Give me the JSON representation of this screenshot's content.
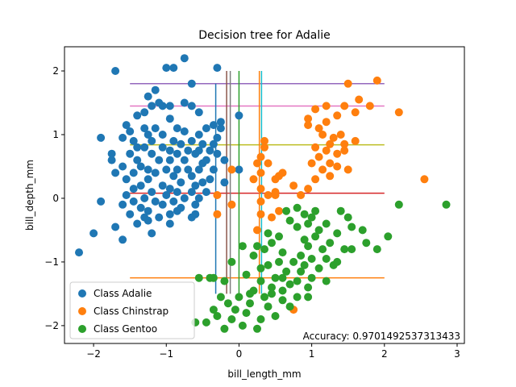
{
  "chart_data": {
    "type": "scatter",
    "title": "Decision tree for Adalie",
    "xlabel": "bill_length_mm",
    "ylabel": "bill_depth_mm",
    "xlim": [
      -2.4,
      3.1
    ],
    "ylim": [
      -2.28,
      2.38
    ],
    "xticks": [
      -2,
      -1,
      0,
      1,
      2,
      3
    ],
    "xtick_labels": [
      "−2",
      "−1",
      "0",
      "1",
      "2",
      "3"
    ],
    "yticks": [
      -2,
      -1,
      0,
      1,
      2
    ],
    "ytick_labels": [
      "−2",
      "−1",
      "0",
      "1",
      "2"
    ],
    "grid": false,
    "legend_position": "lower-left",
    "annotation": "Accuracy: 0.9701492537313433",
    "series": [
      {
        "name": "Class Adalie",
        "color": "#1f77b4",
        "points": [
          [
            -0.75,
            2.2
          ],
          [
            -1.0,
            2.05
          ],
          [
            -0.9,
            2.05
          ],
          [
            -0.65,
            1.8
          ],
          [
            -1.15,
            1.7
          ],
          [
            -1.1,
            1.5
          ],
          [
            -1.25,
            1.6
          ],
          [
            -0.75,
            1.5
          ],
          [
            -1.2,
            1.45
          ],
          [
            -1.05,
            1.45
          ],
          [
            -0.95,
            1.45
          ],
          [
            -0.65,
            1.45
          ],
          [
            -0.55,
            1.35
          ],
          [
            -1.3,
            1.35
          ],
          [
            -1.4,
            1.3
          ],
          [
            -0.95,
            1.25
          ],
          [
            -1.55,
            1.15
          ],
          [
            -1.3,
            1.1
          ],
          [
            -1.15,
            1.1
          ],
          [
            -0.85,
            1.1
          ],
          [
            -0.45,
            1.1
          ],
          [
            -0.35,
            1.15
          ],
          [
            -1.5,
            1.05
          ],
          [
            -1.25,
            1.0
          ],
          [
            -1.05,
            1.0
          ],
          [
            -0.75,
            1.05
          ],
          [
            -0.55,
            1.0
          ],
          [
            -1.9,
            0.95
          ],
          [
            -1.6,
            0.95
          ],
          [
            -1.45,
            0.9
          ],
          [
            -1.2,
            0.9
          ],
          [
            -0.9,
            0.9
          ],
          [
            -0.8,
            0.85
          ],
          [
            -0.65,
            0.9
          ],
          [
            -0.5,
            0.85
          ],
          [
            -1.4,
            0.8
          ],
          [
            -1.3,
            0.8
          ],
          [
            -1.05,
            0.8
          ],
          [
            -0.95,
            0.75
          ],
          [
            -0.7,
            0.75
          ],
          [
            -0.55,
            0.75
          ],
          [
            -0.4,
            0.75
          ],
          [
            -0.3,
            0.7
          ],
          [
            -1.75,
            0.7
          ],
          [
            -1.5,
            0.7
          ],
          [
            -1.2,
            0.7
          ],
          [
            -0.85,
            0.7
          ],
          [
            -0.6,
            0.7
          ],
          [
            -1.75,
            0.6
          ],
          [
            -1.4,
            0.6
          ],
          [
            -1.1,
            0.6
          ],
          [
            -0.95,
            0.6
          ],
          [
            -0.75,
            0.6
          ],
          [
            -0.5,
            0.55
          ],
          [
            -1.6,
            0.5
          ],
          [
            -1.35,
            0.5
          ],
          [
            -1.25,
            0.45
          ],
          [
            -1.0,
            0.45
          ],
          [
            -0.85,
            0.45
          ],
          [
            -0.7,
            0.45
          ],
          [
            -0.55,
            0.45
          ],
          [
            -0.35,
            0.45
          ],
          [
            -1.7,
            0.4
          ],
          [
            -1.45,
            0.4
          ],
          [
            -1.15,
            0.4
          ],
          [
            -0.9,
            0.35
          ],
          [
            -0.65,
            0.35
          ],
          [
            -1.55,
            0.3
          ],
          [
            -1.25,
            0.3
          ],
          [
            -0.8,
            0.25
          ],
          [
            -0.5,
            0.25
          ],
          [
            -1.35,
            0.2
          ],
          [
            -1.05,
            0.2
          ],
          [
            -0.95,
            0.15
          ],
          [
            -0.6,
            0.2
          ],
          [
            -1.45,
            0.15
          ],
          [
            -1.2,
            0.1
          ],
          [
            -0.85,
            0.1
          ],
          [
            -0.65,
            0.1
          ],
          [
            -0.45,
            0.1
          ],
          [
            -1.55,
            0.05
          ],
          [
            -1.3,
            0.0
          ],
          [
            -1.0,
            0.05
          ],
          [
            -0.75,
            0.0
          ],
          [
            -0.55,
            0.0
          ],
          [
            -1.9,
            -0.05
          ],
          [
            -1.45,
            -0.05
          ],
          [
            -1.15,
            -0.05
          ],
          [
            -0.9,
            -0.05
          ],
          [
            -0.6,
            -0.1
          ],
          [
            -1.6,
            -0.1
          ],
          [
            -1.35,
            -0.15
          ],
          [
            -1.05,
            -0.1
          ],
          [
            -0.8,
            -0.15
          ],
          [
            -1.5,
            -0.25
          ],
          [
            -1.25,
            -0.2
          ],
          [
            -0.95,
            -0.25
          ],
          [
            -0.6,
            -0.25
          ],
          [
            -1.3,
            -0.3
          ],
          [
            -1.1,
            -0.3
          ],
          [
            -0.85,
            -0.2
          ],
          [
            -0.65,
            -0.3
          ],
          [
            -1.7,
            -0.45
          ],
          [
            -1.4,
            -0.4
          ],
          [
            -1.2,
            -0.55
          ],
          [
            -0.95,
            -0.4
          ],
          [
            -2.0,
            -0.55
          ],
          [
            -1.6,
            -0.65
          ],
          [
            -2.2,
            -0.85
          ],
          [
            -1.25,
            -0.35
          ],
          [
            -0.35,
            0.85
          ],
          [
            -0.3,
            0.95
          ],
          [
            -0.45,
            0.6
          ],
          [
            -0.25,
            1.1
          ],
          [
            -0.25,
            1.2
          ],
          [
            -0.2,
            0.6
          ],
          [
            -0.2,
            0.25
          ],
          [
            -0.4,
            0.3
          ],
          [
            0.0,
            1.3
          ],
          [
            0.0,
            0.45
          ],
          [
            -0.3,
            2.05
          ],
          [
            -1.7,
            2.0
          ]
        ]
      },
      {
        "name": "Class Chinstrap",
        "color": "#ff7f0e",
        "points": [
          [
            1.5,
            1.8
          ],
          [
            1.9,
            1.85
          ],
          [
            1.2,
            1.45
          ],
          [
            1.05,
            1.4
          ],
          [
            1.45,
            1.45
          ],
          [
            1.65,
            1.55
          ],
          [
            1.8,
            1.45
          ],
          [
            2.2,
            1.35
          ],
          [
            1.6,
            1.35
          ],
          [
            1.35,
            1.3
          ],
          [
            0.95,
            1.25
          ],
          [
            0.95,
            1.15
          ],
          [
            1.2,
            1.2
          ],
          [
            1.1,
            1.1
          ],
          [
            1.15,
            1.0
          ],
          [
            1.3,
            0.95
          ],
          [
            1.4,
            1.0
          ],
          [
            1.45,
            0.85
          ],
          [
            1.25,
            0.85
          ],
          [
            1.05,
            0.8
          ],
          [
            1.2,
            0.75
          ],
          [
            1.45,
            0.75
          ],
          [
            1.6,
            0.9
          ],
          [
            1.35,
            0.7
          ],
          [
            1.1,
            0.65
          ],
          [
            1.25,
            0.55
          ],
          [
            1.0,
            0.55
          ],
          [
            1.15,
            0.45
          ],
          [
            1.35,
            0.5
          ],
          [
            1.5,
            0.45
          ],
          [
            1.25,
            0.35
          ],
          [
            1.05,
            0.3
          ],
          [
            0.5,
            0.3
          ],
          [
            0.55,
            0.35
          ],
          [
            0.6,
            0.4
          ],
          [
            0.25,
            0.55
          ],
          [
            0.3,
            0.65
          ],
          [
            0.35,
            0.8
          ],
          [
            0.4,
            0.55
          ],
          [
            0.2,
            0.3
          ],
          [
            0.75,
            0.2
          ],
          [
            0.95,
            0.15
          ],
          [
            0.5,
            0.1
          ],
          [
            0.4,
            0.05
          ],
          [
            0.3,
            -0.05
          ],
          [
            0.85,
            0.05
          ],
          [
            2.55,
            0.3
          ],
          [
            0.55,
            -0.2
          ],
          [
            0.45,
            -0.3
          ],
          [
            0.3,
            -0.25
          ],
          [
            0.25,
            -0.5
          ],
          [
            0.35,
            0.9
          ],
          [
            -0.3,
            -0.25
          ],
          [
            -0.1,
            0.45
          ],
          [
            -0.1,
            -0.1
          ],
          [
            -0.3,
            0.05
          ],
          [
            0.3,
            0.15
          ],
          [
            0.75,
            -1.75
          ],
          [
            0.3,
            0.4
          ],
          [
            0.5,
            0.05
          ]
        ]
      },
      {
        "name": "Class Gentoo",
        "color": "#2ca02c",
        "points": [
          [
            2.2,
            -0.1
          ],
          [
            2.85,
            -0.1
          ],
          [
            1.5,
            -0.3
          ],
          [
            2.05,
            -0.6
          ],
          [
            1.75,
            -0.7
          ],
          [
            1.9,
            -0.8
          ],
          [
            1.55,
            -0.8
          ],
          [
            1.35,
            -0.55
          ],
          [
            1.2,
            -0.4
          ],
          [
            1.1,
            -0.5
          ],
          [
            0.95,
            -0.4
          ],
          [
            0.8,
            -0.45
          ],
          [
            1.05,
            -0.6
          ],
          [
            0.9,
            -0.65
          ],
          [
            1.25,
            -0.7
          ],
          [
            1.15,
            -0.8
          ],
          [
            0.95,
            -0.75
          ],
          [
            0.85,
            -0.9
          ],
          [
            1.0,
            -0.95
          ],
          [
            1.2,
            -0.95
          ],
          [
            1.3,
            -1.05
          ],
          [
            1.1,
            -1.1
          ],
          [
            0.9,
            -1.05
          ],
          [
            0.75,
            -1.0
          ],
          [
            0.6,
            -0.85
          ],
          [
            0.55,
            -1.0
          ],
          [
            0.65,
            -1.15
          ],
          [
            0.4,
            -1.05
          ],
          [
            0.5,
            -1.25
          ],
          [
            0.3,
            -1.3
          ],
          [
            0.45,
            -1.4
          ],
          [
            0.6,
            -1.45
          ],
          [
            0.8,
            -1.3
          ],
          [
            1.0,
            -1.25
          ],
          [
            0.95,
            -1.4
          ],
          [
            0.8,
            -1.55
          ],
          [
            0.6,
            -1.6
          ],
          [
            0.35,
            -1.55
          ],
          [
            0.2,
            -1.45
          ],
          [
            0.15,
            -1.65
          ],
          [
            0.4,
            -1.7
          ],
          [
            0.5,
            -1.85
          ],
          [
            0.3,
            -1.9
          ],
          [
            0.1,
            -1.8
          ],
          [
            -0.05,
            -1.75
          ],
          [
            -0.15,
            -1.65
          ],
          [
            -0.25,
            -1.55
          ],
          [
            -0.1,
            -1.9
          ],
          [
            -0.3,
            -1.85
          ],
          [
            -0.45,
            -1.95
          ],
          [
            -0.2,
            -2.05
          ],
          [
            0.05,
            -2.0
          ],
          [
            0.25,
            -2.05
          ],
          [
            -0.35,
            -1.75
          ],
          [
            0.7,
            -1.7
          ],
          [
            0.95,
            -1.55
          ],
          [
            1.2,
            -1.3
          ],
          [
            1.35,
            -1.0
          ],
          [
            1.55,
            -0.45
          ],
          [
            1.7,
            -0.5
          ],
          [
            0.7,
            -0.35
          ],
          [
            0.65,
            -0.2
          ],
          [
            0.8,
            -0.15
          ],
          [
            0.9,
            -0.25
          ],
          [
            1.0,
            -0.3
          ],
          [
            0.55,
            -0.6
          ],
          [
            0.45,
            -0.7
          ],
          [
            0.35,
            -0.8
          ],
          [
            0.2,
            -0.9
          ],
          [
            0.05,
            -0.75
          ],
          [
            -0.1,
            -1.0
          ],
          [
            -0.2,
            -1.3
          ],
          [
            -0.4,
            -1.25
          ],
          [
            -0.55,
            -1.25
          ],
          [
            0.1,
            -1.2
          ],
          [
            0.3,
            -1.1
          ],
          [
            0.25,
            -0.75
          ],
          [
            0.4,
            -0.55
          ],
          [
            1.4,
            -0.2
          ],
          [
            1.05,
            -0.2
          ],
          [
            0.85,
            -1.15
          ],
          [
            0.7,
            -1.35
          ],
          [
            0.6,
            -1.25
          ],
          [
            0.45,
            -1.5
          ],
          [
            -0.6,
            -1.95
          ],
          [
            0.15,
            -1.5
          ],
          [
            1.45,
            -0.8
          ],
          [
            -0.35,
            -1.25
          ],
          [
            0.0,
            -1.55
          ]
        ]
      }
    ],
    "decision_lines": [
      {
        "orientation": "h",
        "value": 1.8,
        "from": -1.5,
        "to": 2.0,
        "color": "#9467bd"
      },
      {
        "orientation": "h",
        "value": 1.45,
        "from": -1.5,
        "to": 2.0,
        "color": "#e377c2"
      },
      {
        "orientation": "h",
        "value": 0.84,
        "from": -1.5,
        "to": 2.0,
        "color": "#bcbd22"
      },
      {
        "orientation": "h",
        "value": 0.08,
        "from": -1.5,
        "to": 2.0,
        "color": "#d62728"
      },
      {
        "orientation": "h",
        "value": -1.25,
        "from": -1.5,
        "to": 2.0,
        "color": "#ff7f0e"
      },
      {
        "orientation": "v",
        "value": -0.32,
        "from": -1.5,
        "to": 1.8,
        "color": "#1f77b4"
      },
      {
        "orientation": "v",
        "value": -0.17,
        "from": -1.5,
        "to": 2.0,
        "color": "#8c564b"
      },
      {
        "orientation": "v",
        "value": -0.12,
        "from": -1.5,
        "to": 2.0,
        "color": "#7f7f7f"
      },
      {
        "orientation": "v",
        "value": 0.0,
        "from": -1.5,
        "to": 2.0,
        "color": "#2ca02c"
      },
      {
        "orientation": "v",
        "value": 0.28,
        "from": -1.5,
        "to": 2.0,
        "color": "#ff7f0e"
      },
      {
        "orientation": "v",
        "value": 0.31,
        "from": -1.5,
        "to": 2.0,
        "color": "#17becf"
      }
    ]
  }
}
